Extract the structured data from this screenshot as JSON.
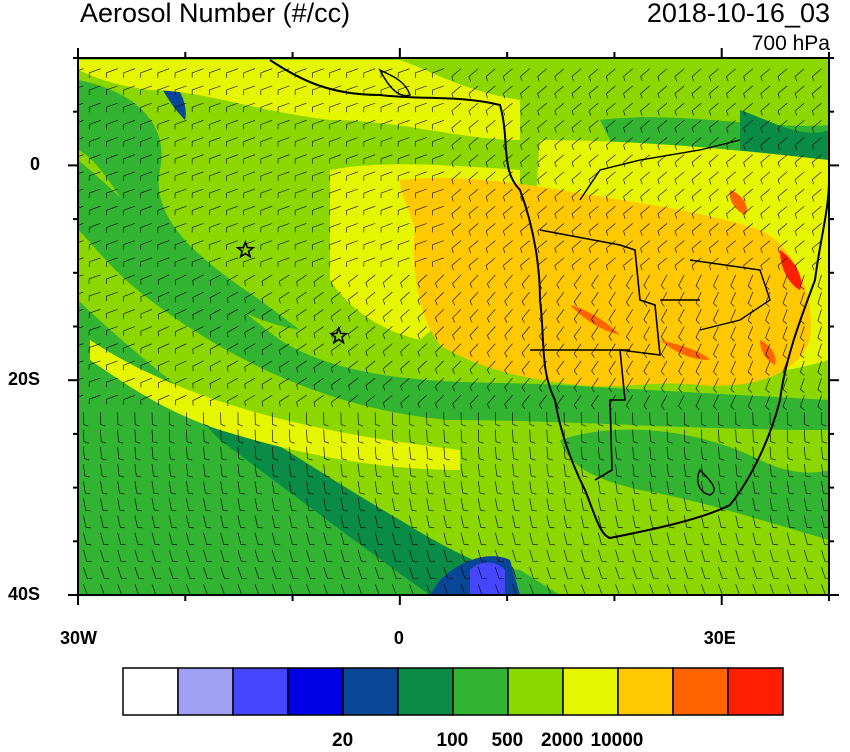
{
  "title": "Aerosol Number (#/cc)",
  "datetime": "2018-10-16_03",
  "level": "700 hPa",
  "map": {
    "lon_range": [
      -30,
      40
    ],
    "lat_range": [
      -40,
      10
    ],
    "lon_ticks": [
      {
        "value": -30,
        "label": "30W"
      },
      {
        "value": 0,
        "label": "0"
      },
      {
        "value": 30,
        "label": "30E"
      }
    ],
    "lat_ticks": [
      {
        "value": 0,
        "label": "0"
      },
      {
        "value": -20,
        "label": "20S"
      },
      {
        "value": -40,
        "label": "40S"
      }
    ],
    "markers": [
      {
        "type": "star",
        "lon": -14.4,
        "lat": -7.9
      },
      {
        "type": "star",
        "lon": -5.7,
        "lat": -15.9
      }
    ],
    "wind_barbs": "700 hPa wind barbs over the full domain"
  },
  "colorbar": {
    "colors": [
      "#ffffff",
      "#a0a0f5",
      "#4646ff",
      "#0000e6",
      "#0a4696",
      "#0a8c46",
      "#32b432",
      "#8cd700",
      "#e6f500",
      "#ffc800",
      "#ff6400",
      "#ff1e00"
    ],
    "labels": [
      {
        "index": 4,
        "text": "20"
      },
      {
        "index": 5,
        "text": "100"
      },
      {
        "index": 6,
        "text": "500"
      },
      {
        "index": 7,
        "text": "2000"
      },
      {
        "index": 8,
        "text": "10000"
      }
    ]
  },
  "icons": {
    "marker": "star-marker-icon"
  }
}
